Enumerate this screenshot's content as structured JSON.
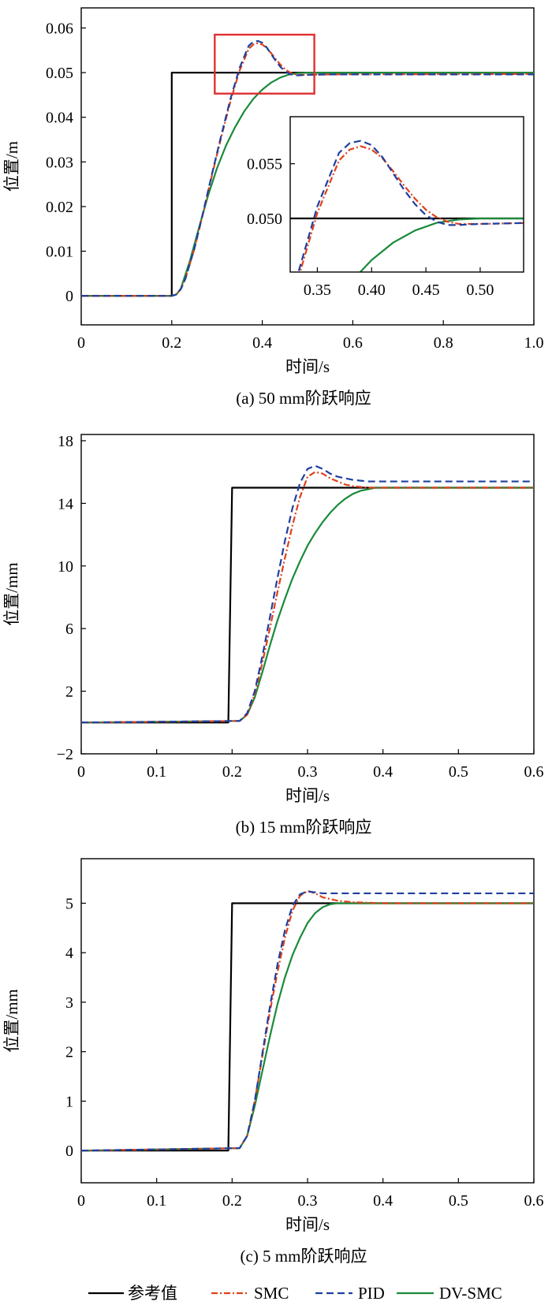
{
  "legend": [
    {
      "name": "参考值",
      "color": "#000000",
      "dash": "solid"
    },
    {
      "name": "SMC",
      "color": "#e0401a",
      "dash": "dashdot"
    },
    {
      "name": "PID",
      "color": "#1f3f9f",
      "dash": "dashed"
    },
    {
      "name": "DV-SMC",
      "color": "#1a8a3a",
      "dash": "solid"
    }
  ],
  "chart_data": [
    {
      "type": "line",
      "caption": "(a) 50 mm阶跃响应",
      "xlabel": "时间/s",
      "ylabel": "位置/m",
      "xlim": [
        0,
        1.0
      ],
      "ylim": [
        -0.0065,
        0.0645
      ],
      "xticks": [
        0,
        0.2,
        0.4,
        0.6,
        0.8,
        1.0
      ],
      "xtick_labels": [
        "0",
        "0.2",
        "0.4",
        "0.6",
        "0.8",
        "1.0"
      ],
      "yticks": [
        0,
        0.01,
        0.02,
        0.03,
        0.04,
        0.05,
        0.06
      ],
      "ytick_labels": [
        "0",
        "0.01",
        "0.02",
        "0.03",
        "0.04",
        "0.05",
        "0.06"
      ],
      "grid": false,
      "highlight_box": {
        "x": [
          0.295,
          0.515
        ],
        "y": [
          0.0453,
          0.0585
        ],
        "color": "#e03030"
      },
      "series": [
        {
          "name": "参考值",
          "x": [
            0,
            0.2,
            0.2,
            1.0
          ],
          "y": [
            0,
            0,
            0.05,
            0.05
          ]
        },
        {
          "name": "SMC",
          "x": [
            0,
            0.2,
            0.21,
            0.22,
            0.23,
            0.25,
            0.27,
            0.29,
            0.31,
            0.33,
            0.35,
            0.37,
            0.38,
            0.39,
            0.4,
            0.41,
            0.42,
            0.43,
            0.44,
            0.45,
            0.46,
            0.47,
            0.48,
            0.5,
            0.55,
            1.0
          ],
          "y": [
            0,
            0,
            0.0003,
            0.0015,
            0.0038,
            0.0105,
            0.0188,
            0.0275,
            0.0358,
            0.0437,
            0.0505,
            0.0553,
            0.0563,
            0.0566,
            0.0563,
            0.0555,
            0.0543,
            0.053,
            0.0518,
            0.0508,
            0.0501,
            0.0497,
            0.0495,
            0.0495,
            0.0496,
            0.0497
          ]
        },
        {
          "name": "PID",
          "x": [
            0,
            0.2,
            0.21,
            0.22,
            0.23,
            0.25,
            0.27,
            0.29,
            0.31,
            0.33,
            0.35,
            0.37,
            0.38,
            0.39,
            0.4,
            0.41,
            0.42,
            0.43,
            0.44,
            0.45,
            0.46,
            0.47,
            0.48,
            0.5,
            0.55,
            1.0
          ],
          "y": [
            0,
            0,
            0.0003,
            0.0015,
            0.0038,
            0.0106,
            0.019,
            0.0278,
            0.0362,
            0.0442,
            0.0511,
            0.056,
            0.0569,
            0.0571,
            0.0567,
            0.0556,
            0.0541,
            0.0526,
            0.0513,
            0.0503,
            0.0497,
            0.0494,
            0.0494,
            0.0495,
            0.0496,
            0.0496
          ]
        },
        {
          "name": "DV-SMC",
          "x": [
            0,
            0.2,
            0.21,
            0.22,
            0.24,
            0.26,
            0.28,
            0.3,
            0.32,
            0.34,
            0.36,
            0.38,
            0.4,
            0.42,
            0.44,
            0.46,
            0.48,
            0.5,
            0.55,
            1.0
          ],
          "y": [
            0,
            0,
            0.0003,
            0.0016,
            0.0078,
            0.0152,
            0.0224,
            0.0286,
            0.0337,
            0.0378,
            0.0413,
            0.0441,
            0.0462,
            0.0478,
            0.0489,
            0.0496,
            0.0499,
            0.05,
            0.05,
            0.05
          ]
        }
      ],
      "inset": {
        "xlim": [
          0.325,
          0.54
        ],
        "ylim": [
          0.0451,
          0.0593
        ],
        "xticks": [
          0.35,
          0.4,
          0.45,
          0.5
        ],
        "xtick_labels": [
          "0.35",
          "0.40",
          "0.45",
          "0.50"
        ],
        "yticks": [
          0.05,
          0.055
        ],
        "ytick_labels": [
          "0.050",
          "0.055"
        ]
      }
    },
    {
      "type": "line",
      "caption": "(b) 15 mm阶跃响应",
      "xlabel": "时间/s",
      "ylabel": "位置/mm",
      "xlim": [
        0,
        0.6
      ],
      "ylim": [
        -2,
        18.4
      ],
      "xticks": [
        0,
        0.1,
        0.2,
        0.3,
        0.4,
        0.5,
        0.6
      ],
      "xtick_labels": [
        "0",
        "0.1",
        "0.2",
        "0.3",
        "0.4",
        "0.5",
        "0.6"
      ],
      "yticks": [
        -2,
        2,
        6,
        10,
        14,
        18
      ],
      "ytick_labels": [
        "−2",
        "2",
        "6",
        "10",
        "14",
        "18"
      ],
      "grid": false,
      "series": [
        {
          "name": "参考值",
          "x": [
            0,
            0.195,
            0.2,
            0.6
          ],
          "y": [
            0,
            0,
            15,
            15
          ]
        },
        {
          "name": "SMC",
          "x": [
            0,
            0.21,
            0.22,
            0.23,
            0.24,
            0.25,
            0.26,
            0.27,
            0.28,
            0.29,
            0.3,
            0.31,
            0.32,
            0.33,
            0.34,
            0.35,
            0.36,
            0.38,
            0.4,
            0.6
          ],
          "y": [
            0,
            0.1,
            0.5,
            1.8,
            3.8,
            6.0,
            8.3,
            10.5,
            12.6,
            14.4,
            15.7,
            16.0,
            15.9,
            15.6,
            15.4,
            15.2,
            15.1,
            15.0,
            15.0,
            15.0
          ]
        },
        {
          "name": "PID",
          "x": [
            0,
            0.21,
            0.22,
            0.23,
            0.24,
            0.25,
            0.26,
            0.27,
            0.28,
            0.29,
            0.3,
            0.31,
            0.32,
            0.33,
            0.34,
            0.36,
            0.38,
            0.4,
            0.6
          ],
          "y": [
            0,
            0.1,
            0.6,
            2.0,
            4.2,
            6.7,
            9.2,
            11.6,
            13.7,
            15.3,
            16.2,
            16.4,
            16.2,
            15.9,
            15.7,
            15.5,
            15.4,
            15.4,
            15.4
          ]
        },
        {
          "name": "DV-SMC",
          "x": [
            0,
            0.21,
            0.22,
            0.23,
            0.24,
            0.25,
            0.26,
            0.27,
            0.28,
            0.29,
            0.3,
            0.31,
            0.32,
            0.33,
            0.34,
            0.35,
            0.36,
            0.37,
            0.38,
            0.39,
            0.4,
            0.6
          ],
          "y": [
            0,
            0.1,
            0.5,
            1.6,
            3.2,
            4.9,
            6.5,
            7.9,
            9.2,
            10.3,
            11.3,
            12.1,
            12.8,
            13.4,
            13.9,
            14.3,
            14.6,
            14.8,
            14.9,
            15.0,
            15.0,
            15.0
          ]
        }
      ]
    },
    {
      "type": "line",
      "caption": "(c) 5 mm阶跃响应",
      "xlabel": "时间/s",
      "ylabel": "位置/mm",
      "xlim": [
        0,
        0.6
      ],
      "ylim": [
        -0.65,
        5.9
      ],
      "xticks": [
        0,
        0.1,
        0.2,
        0.3,
        0.4,
        0.5,
        0.6
      ],
      "xtick_labels": [
        "0",
        "0.1",
        "0.2",
        "0.3",
        "0.4",
        "0.5",
        "0.6"
      ],
      "yticks": [
        0,
        1,
        2,
        3,
        4,
        5
      ],
      "ytick_labels": [
        "0",
        "1",
        "2",
        "3",
        "4",
        "5"
      ],
      "grid": false,
      "series": [
        {
          "name": "参考值",
          "x": [
            0,
            0.195,
            0.2,
            0.6
          ],
          "y": [
            0,
            0,
            5,
            5
          ]
        },
        {
          "name": "SMC",
          "x": [
            0,
            0.21,
            0.22,
            0.23,
            0.24,
            0.25,
            0.26,
            0.27,
            0.28,
            0.29,
            0.3,
            0.31,
            0.32,
            0.34,
            0.36,
            0.4,
            0.6
          ],
          "y": [
            0,
            0.05,
            0.3,
            1.0,
            1.9,
            2.8,
            3.6,
            4.3,
            4.85,
            5.15,
            5.25,
            5.2,
            5.12,
            5.05,
            5.02,
            5.0,
            5.0
          ]
        },
        {
          "name": "PID",
          "x": [
            0,
            0.21,
            0.22,
            0.23,
            0.24,
            0.25,
            0.26,
            0.27,
            0.28,
            0.29,
            0.3,
            0.31,
            0.32,
            0.34,
            0.6
          ],
          "y": [
            0,
            0.05,
            0.3,
            1.0,
            1.95,
            2.9,
            3.75,
            4.45,
            4.95,
            5.18,
            5.24,
            5.22,
            5.2,
            5.2,
            5.2
          ]
        },
        {
          "name": "DV-SMC",
          "x": [
            0,
            0.21,
            0.22,
            0.23,
            0.24,
            0.25,
            0.26,
            0.27,
            0.28,
            0.29,
            0.3,
            0.31,
            0.32,
            0.33,
            0.34,
            0.36,
            0.6
          ],
          "y": [
            0,
            0.05,
            0.3,
            0.9,
            1.6,
            2.3,
            2.95,
            3.5,
            3.95,
            4.3,
            4.6,
            4.8,
            4.92,
            4.98,
            5.0,
            5.0,
            5.0
          ]
        }
      ]
    }
  ]
}
